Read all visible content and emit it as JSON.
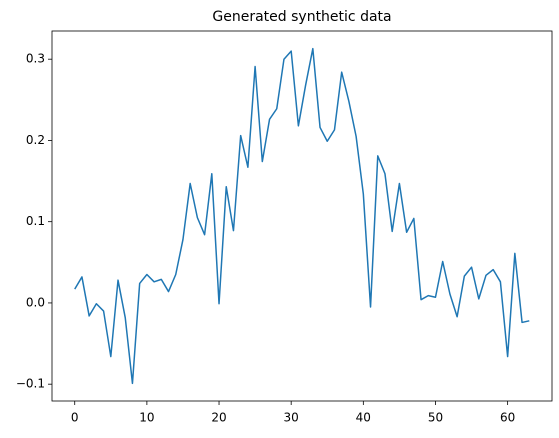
{
  "chart_data": {
    "type": "line",
    "title": "Generated synthetic data",
    "x": [
      0,
      1,
      2,
      3,
      4,
      5,
      6,
      7,
      8,
      9,
      10,
      11,
      12,
      13,
      14,
      15,
      16,
      17,
      18,
      19,
      20,
      21,
      22,
      23,
      24,
      25,
      26,
      27,
      28,
      29,
      30,
      31,
      32,
      33,
      34,
      35,
      36,
      37,
      38,
      39,
      40,
      41,
      42,
      43,
      44,
      45,
      46,
      47,
      48,
      49,
      50,
      51,
      52,
      53,
      54,
      55,
      56,
      57,
      58,
      59,
      60,
      61,
      62,
      63
    ],
    "values": [
      0.017,
      0.032,
      -0.016,
      -0.001,
      -0.01,
      -0.066,
      0.028,
      -0.018,
      -0.099,
      0.024,
      0.035,
      0.026,
      0.029,
      0.014,
      0.035,
      0.078,
      0.147,
      0.105,
      0.084,
      0.159,
      -0.001,
      0.143,
      0.089,
      0.206,
      0.167,
      0.291,
      0.174,
      0.226,
      0.239,
      0.3,
      0.31,
      0.218,
      0.268,
      0.313,
      0.216,
      0.199,
      0.213,
      0.284,
      0.248,
      0.205,
      0.134,
      -0.005,
      0.181,
      0.159,
      0.088,
      0.147,
      0.087,
      0.104,
      0.004,
      0.009,
      0.007,
      0.051,
      0.011,
      -0.017,
      0.033,
      0.044,
      0.005,
      0.034,
      0.041,
      0.026,
      -0.066,
      0.061,
      -0.024,
      -0.022
    ],
    "color": "#1f77b4",
    "xlim": [
      -3.15,
      66.15
    ],
    "xticks": [
      0,
      10,
      20,
      30,
      40,
      50,
      60
    ],
    "ylim": [
      -0.1207,
      0.3347
    ],
    "yticks": [
      {
        "value": -0.1,
        "label": "−0.1"
      },
      {
        "value": 0,
        "label": "0.0"
      },
      0.1,
      0.2,
      0.3
    ]
  }
}
